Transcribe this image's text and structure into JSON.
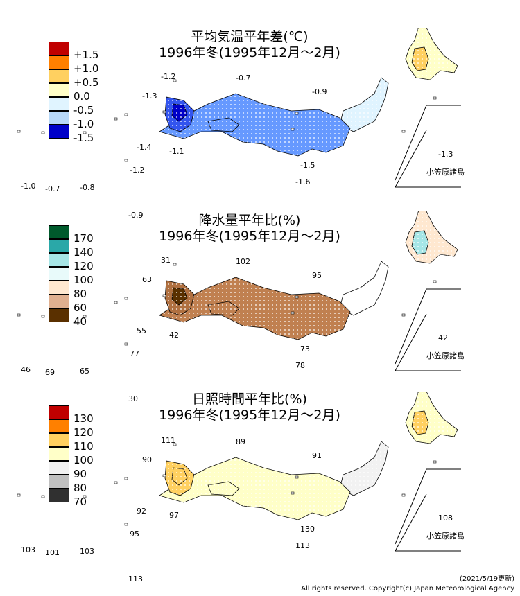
{
  "panels": [
    {
      "title_line1": "平均気温平年差(℃)",
      "title_line2": "1996年冬(1995年12月～2月)",
      "legend": [
        "+1.5",
        "+1.0",
        "+0.5",
        "0.0",
        "-0.5",
        "-1.0",
        "-1.5"
      ],
      "legend_colors": [
        "#c00000",
        "#ff8000",
        "#ffd060",
        "#ffffc8",
        "#e0f4ff",
        "#b8d8f8",
        "#0000c8"
      ],
      "values": {
        "rebun": "-1.2",
        "okinoshima": "-0.7",
        "goto": "-1.3",
        "sado": "-0.9",
        "tanegashima": "-1.4",
        "yakushima": "-1.1",
        "hachijo": "-1.5",
        "torishima": "-1.6",
        "amami": "-1.2",
        "minamidaito": "-0.9",
        "yonaguni": "-1.0",
        "ishigaki": "-0.7",
        "okinawa": "-0.8",
        "chichijima": "-1.3"
      },
      "ogasawara_label": "小笠原諸島",
      "fills": {
        "hokkaido": "#ffffc8",
        "hokkaido_inner": "#ffd060",
        "tohoku": "#e0f4ff",
        "main": "#6699ff",
        "kyushu": "#3355ee",
        "kyushu_core": "#0000c8"
      }
    },
    {
      "title_line1": "降水量平年比(%)",
      "title_line2": "1996年冬(1995年12月～2月)",
      "legend": [
        "170",
        "140",
        "120",
        "100",
        "80",
        "60",
        "40"
      ],
      "legend_colors": [
        "#005a2c",
        "#2aa8a8",
        "#a6e6e6",
        "#e8fafa",
        "#ffe8d0",
        "#e0b090",
        "#5a3000"
      ],
      "values": {
        "rebun": "31",
        "okinoshima": "102",
        "goto": "63",
        "sado": "95",
        "tanegashima": "55",
        "yakushima": "42",
        "hachijo": "73",
        "torishima": "78",
        "amami": "77",
        "minamidaito": "30",
        "yonaguni": "46",
        "ishigaki": "69",
        "okinawa": "65",
        "chichijima": "42"
      },
      "ogasawara_label": "小笠原諸島",
      "fills": {
        "hokkaido": "#ffe8d0",
        "hokkaido_inner": "#a6e6e6",
        "tohoku": "#ffffff",
        "main": "#c08050",
        "kyushu": "#b07040",
        "kyushu_core": "#5a3000"
      }
    },
    {
      "title_line1": "日照時間平年比(%)",
      "title_line2": "1996年冬(1995年12月～2月)",
      "legend": [
        "130",
        "120",
        "110",
        "100",
        "90",
        "80",
        "70"
      ],
      "legend_colors": [
        "#c00000",
        "#ff8000",
        "#ffd060",
        "#ffffc8",
        "#f2f2f2",
        "#c0c0c0",
        "#303030"
      ],
      "values": {
        "rebun": "111",
        "okinoshima": "89",
        "goto": "90",
        "sado": "91",
        "tanegashima": "92",
        "yakushima": "97",
        "hachijo": "130",
        "torishima": "113",
        "amami": "95",
        "minamidaito": "113",
        "yonaguni": "103",
        "ishigaki": "101",
        "okinawa": "103",
        "chichijima": "108"
      },
      "ogasawara_label": "小笠原諸島",
      "fills": {
        "hokkaido": "#ffffc8",
        "hokkaido_inner": "#ffd060",
        "tohoku": "#f2f2f2",
        "main": "#ffffc8",
        "kyushu": "#ffd060",
        "kyushu_core": "#ffd060"
      }
    }
  ],
  "footer": {
    "updated": "(2021/5/19更新)",
    "copyright": "All rights reserved. Copyright(c) Japan Meteorological Agency"
  }
}
